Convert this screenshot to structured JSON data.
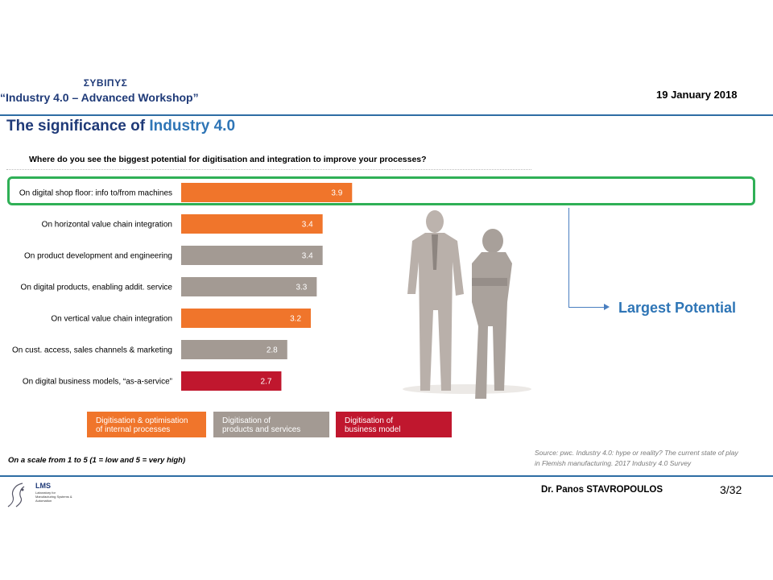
{
  "header": {
    "org": "ΣΥΒΙΠΥΣ",
    "workshop": "“Industry 4.0 – Advanced Workshop”",
    "date": "19 January  2018"
  },
  "slide": {
    "title_part1": "The significance of ",
    "title_part2": "Industry 4.0",
    "callout": "Largest Potential"
  },
  "colors": {
    "orange": "#f0752b",
    "grey": "#a39a93",
    "red": "#c0172e",
    "highlight": "#2fb056",
    "title_blue": "#1f3a78",
    "accent_blue": "#2e75b6"
  },
  "chart_data": {
    "type": "bar",
    "orientation": "horizontal",
    "title": "Where do you see the biggest potential for digitisation and integration to improve your processes?",
    "categories": [
      "On digital shop floor: info to/from machines",
      "On horizontal value chain integration",
      "On product development and engineering",
      "On digital products, enabling addit. service",
      "On vertical value chain integration",
      "On cust. access, sales channels & marketing",
      "On digital business models, “as-a-service”"
    ],
    "values": [
      3.9,
      3.4,
      3.4,
      3.3,
      3.2,
      2.8,
      2.7
    ],
    "value_labels": [
      "3.9",
      "3.4",
      "3.4",
      "3.3",
      "3.2",
      "2.8",
      "2.7"
    ],
    "groups": [
      "orange",
      "orange",
      "grey",
      "grey",
      "orange",
      "grey",
      "red"
    ],
    "xlim": [
      1,
      5
    ],
    "legend": [
      {
        "group": "orange",
        "lines": [
          "Digitisation & optimisation",
          "of internal processes"
        ]
      },
      {
        "group": "grey",
        "lines": [
          "Digitisation of",
          "products and services"
        ]
      },
      {
        "group": "red",
        "lines": [
          "Digitisation of",
          "business model"
        ]
      }
    ],
    "legend_position": "bottom",
    "note": "On a scale from 1 to 5 (1 = low and 5 = very high)",
    "highlighted_category_index": 0
  },
  "source": {
    "line1": "Source: pwc. Industry 4.0: hype or reality? The current state of play",
    "line2": "in Flemish manufacturing. 2017 Industry 4.0 Survey"
  },
  "footer": {
    "logo_text": "LMS",
    "logo_sub": "Laboratory for Manufacturing Systems & Automation",
    "presenter": "Dr. Panos STAVROPOULOS",
    "page": "3/32"
  }
}
